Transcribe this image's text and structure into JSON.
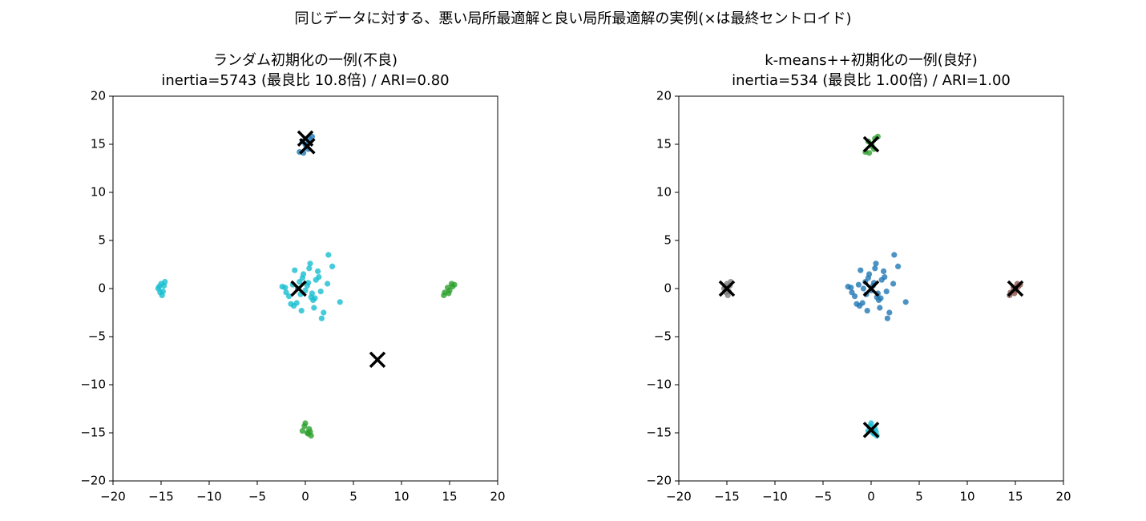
{
  "title": "同じデータに対する、悪い局所最適解と良い局所最適解の実例(×は最終セントロイド)",
  "chart_data": [
    {
      "type": "scatter",
      "title": "ランダム初期化の一例(不良)",
      "subtitle": "inertia=5743 (最良比 10.8倍) / ARI=0.80",
      "xlim": [
        -20,
        20
      ],
      "ylim": [
        -20,
        20
      ],
      "xticks": [
        {
          "value": -20,
          "label": "−20"
        },
        {
          "value": -15,
          "label": "−15"
        },
        {
          "value": -10,
          "label": "−10"
        },
        {
          "value": -5,
          "label": "−5"
        },
        0,
        5,
        10,
        15,
        20
      ],
      "yticks": [
        {
          "value": -20,
          "label": "−20"
        },
        {
          "value": -15,
          "label": "−15"
        },
        {
          "value": -10,
          "label": "−10"
        },
        {
          "value": -5,
          "label": "−5"
        },
        0,
        5,
        10,
        15,
        20
      ],
      "series": [
        {
          "color": "#17becf",
          "marker": "o",
          "x": [
            0.2,
            -0.5,
            1.1,
            -1.3,
            0.8,
            -0.2,
            1.6,
            -2.1,
            0.4,
            -0.9,
            2.3,
            -1.7,
            0.0,
            1.3,
            -0.6,
            0.9,
            -2.4,
            1.9,
            -0.3,
            0.6,
            -1.1,
            2.8,
            -1.5,
            0.3,
            1.0,
            -0.8,
            3.6,
            2.4,
            1.7,
            -2.0,
            0.5,
            -0.4,
            1.4,
            -1.2,
            0.7,
            -15.2,
            -14.8,
            -15.0,
            -14.6,
            -15.3,
            -14.9,
            -15.1,
            -14.7
          ],
          "y": [
            0.3,
            -0.6,
            0.9,
            0.4,
            -1.2,
            1.5,
            -0.3,
            0.1,
            2.1,
            -1.5,
            0.5,
            -0.8,
            -0.2,
            1.8,
            0.7,
            -2.0,
            0.2,
            -2.5,
            1.1,
            -0.9,
            1.9,
            2.3,
            -1.6,
            0.6,
            -1.0,
            0.0,
            -1.4,
            3.5,
            -3.1,
            -0.4,
            2.6,
            -2.3,
            1.2,
            -1.8,
            -0.5,
            0.2,
            -0.3,
            0.5,
            0.7,
            0.0,
            -0.7,
            -0.4,
            0.3
          ]
        },
        {
          "color": "#2ca02c",
          "marker": "o",
          "x": [
            14.5,
            15.2,
            14.8,
            15.5,
            15.0,
            14.4,
            15.3,
            14.9,
            0.0,
            0.4,
            -0.3,
            0.6,
            0.2,
            -0.1,
            0.5,
            0.3
          ],
          "y": [
            -0.4,
            0.5,
            0.1,
            0.4,
            -0.2,
            -0.7,
            0.2,
            -0.5,
            -14.0,
            -14.6,
            -14.8,
            -15.3,
            -15.0,
            -14.3,
            -14.9,
            -15.1
          ]
        },
        {
          "color": "#1f77b4",
          "marker": "o",
          "x": [
            -0.3,
            0.4,
            0.1,
            -0.6,
            0.7,
            0.0,
            0.3,
            -0.2
          ],
          "y": [
            15.3,
            15.6,
            14.8,
            14.2,
            15.8,
            15.0,
            14.5,
            14.1
          ]
        },
        {
          "color": "#000000",
          "marker": "x",
          "x": [
            0.0,
            0.2,
            -0.7,
            7.5
          ],
          "y": [
            15.6,
            14.8,
            0.0,
            -7.4
          ]
        }
      ]
    },
    {
      "type": "scatter",
      "title": "k-means++初期化の一例(良好)",
      "subtitle": "inertia=534 (最良比 1.00倍) / ARI=1.00",
      "xlim": [
        -20,
        20
      ],
      "ylim": [
        -20,
        20
      ],
      "xticks": [
        {
          "value": -20,
          "label": "−20"
        },
        {
          "value": -15,
          "label": "−15"
        },
        {
          "value": -10,
          "label": "−10"
        },
        {
          "value": -5,
          "label": "−5"
        },
        0,
        5,
        10,
        15,
        20
      ],
      "yticks": [
        {
          "value": -20,
          "label": "−20"
        },
        {
          "value": -15,
          "label": "−15"
        },
        {
          "value": -10,
          "label": "−10"
        },
        {
          "value": -5,
          "label": "−5"
        },
        0,
        5,
        10,
        15,
        20
      ],
      "series": [
        {
          "color": "#1f77b4",
          "marker": "o",
          "x": [
            0.2,
            -0.5,
            1.1,
            -1.3,
            0.8,
            -0.2,
            1.6,
            -2.1,
            0.4,
            -0.9,
            2.3,
            -1.7,
            0.0,
            1.3,
            -0.6,
            0.9,
            -2.4,
            1.9,
            -0.3,
            0.6,
            -1.1,
            2.8,
            -1.5,
            0.3,
            1.0,
            -0.8,
            3.6,
            2.4,
            1.7,
            -2.0,
            0.5,
            -0.4,
            1.4,
            -1.2,
            0.7
          ],
          "y": [
            0.3,
            -0.6,
            0.9,
            0.4,
            -1.2,
            1.5,
            -0.3,
            0.1,
            2.1,
            -1.5,
            0.5,
            -0.8,
            -0.2,
            1.8,
            0.7,
            -2.0,
            0.2,
            -2.5,
            1.1,
            -0.9,
            1.9,
            2.3,
            -1.6,
            0.6,
            -1.0,
            0.0,
            -1.4,
            3.5,
            -3.1,
            -0.4,
            2.6,
            -2.3,
            1.2,
            -1.8,
            -0.5
          ]
        },
        {
          "color": "#2ca02c",
          "marker": "o",
          "x": [
            -0.3,
            0.4,
            0.1,
            -0.6,
            0.7,
            0.0,
            0.3,
            -0.2
          ],
          "y": [
            15.3,
            15.6,
            14.8,
            14.2,
            15.8,
            15.0,
            14.5,
            14.1
          ]
        },
        {
          "color": "#17becf",
          "marker": "o",
          "x": [
            0.0,
            0.4,
            -0.3,
            0.6,
            0.2,
            -0.1,
            0.5,
            0.3
          ],
          "y": [
            -14.0,
            -14.6,
            -14.8,
            -15.3,
            -15.0,
            -14.3,
            -14.9,
            -15.1
          ]
        },
        {
          "color": "#8c564b",
          "marker": "o",
          "x": [
            14.5,
            15.2,
            14.8,
            15.5,
            15.0,
            14.4,
            15.3,
            14.9
          ],
          "y": [
            -0.4,
            0.5,
            0.1,
            0.4,
            -0.2,
            -0.7,
            0.2,
            -0.5
          ]
        },
        {
          "color": "#7f7f7f",
          "marker": "o",
          "x": [
            -15.2,
            -14.8,
            -15.0,
            -14.6,
            -15.3,
            -14.9,
            -15.1,
            -14.7
          ],
          "y": [
            0.2,
            -0.3,
            0.5,
            0.7,
            0.0,
            -0.7,
            -0.4,
            0.3
          ]
        },
        {
          "color": "#000000",
          "marker": "x",
          "x": [
            0.0,
            0.0,
            0.0,
            15.0,
            -15.0
          ],
          "y": [
            0.0,
            15.0,
            -14.7,
            0.0,
            0.0
          ]
        }
      ]
    }
  ]
}
